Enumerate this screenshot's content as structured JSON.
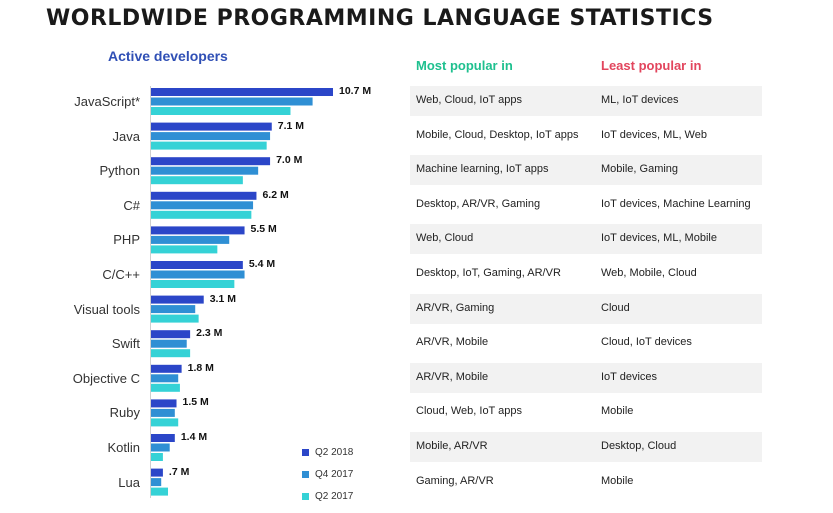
{
  "title": "WORLDWIDE PROGRAMMING LANGUAGE STATISTICS",
  "headers": {
    "active": "Active developers",
    "most": "Most popular in",
    "least": "Least popular in"
  },
  "colors": {
    "header_active": "#2f4fb5",
    "header_most": "#1fc08f",
    "header_least": "#e2455d",
    "series": [
      "#2b46c8",
      "#2f8fd4",
      "#35d2d6"
    ]
  },
  "rows": [
    {
      "lang": "JavaScript*",
      "most": "Web, Cloud, IoT apps",
      "least": "ML, IoT devices"
    },
    {
      "lang": "Java",
      "most": "Mobile, Cloud, Desktop, IoT apps",
      "least": "IoT devices, ML, Web"
    },
    {
      "lang": "Python",
      "most": "Machine learning, IoT apps",
      "least": "Mobile, Gaming"
    },
    {
      "lang": "C#",
      "most": "Desktop, AR/VR, Gaming",
      "least": "IoT devices, Machine Learning"
    },
    {
      "lang": "PHP",
      "most": "Web, Cloud",
      "least": "IoT devices, ML, Mobile"
    },
    {
      "lang": "C/C++",
      "most": "Desktop, IoT, Gaming, AR/VR",
      "least": "Web, Mobile, Cloud"
    },
    {
      "lang": "Visual tools",
      "most": "AR/VR, Gaming",
      "least": "Cloud"
    },
    {
      "lang": "Swift",
      "most": "AR/VR, Mobile",
      "least": "Cloud, IoT devices"
    },
    {
      "lang": "Objective C",
      "most": "AR/VR, Mobile",
      "least": "IoT devices"
    },
    {
      "lang": "Ruby",
      "most": "Cloud, Web, IoT apps",
      "least": "Mobile"
    },
    {
      "lang": "Kotlin",
      "most": "Mobile, AR/VR",
      "least": "Desktop, Cloud"
    },
    {
      "lang": "Lua",
      "most": "Gaming, AR/VR",
      "least": "Mobile"
    }
  ],
  "chart_data": {
    "type": "bar",
    "orientation": "horizontal",
    "title": "Active developers",
    "categories": [
      "JavaScript*",
      "Java",
      "Python",
      "C#",
      "PHP",
      "C/C++",
      "Visual tools",
      "Swift",
      "Objective C",
      "Ruby",
      "Kotlin",
      "Lua"
    ],
    "series": [
      {
        "name": "Q2 2018",
        "values": [
          10.7,
          7.1,
          7.0,
          6.2,
          5.5,
          5.4,
          3.1,
          2.3,
          1.8,
          1.5,
          1.4,
          0.7
        ]
      },
      {
        "name": "Q4 2017",
        "values": [
          9.5,
          7.0,
          6.3,
          6.0,
          4.6,
          5.5,
          2.6,
          2.1,
          1.6,
          1.4,
          1.1,
          0.6
        ]
      },
      {
        "name": "Q2 2017",
        "values": [
          8.2,
          6.8,
          5.4,
          5.9,
          3.9,
          4.9,
          2.8,
          2.3,
          1.7,
          1.6,
          0.7,
          1.0
        ]
      }
    ],
    "value_labels": [
      "10.7 M",
      "7.1 M",
      "7.0 M",
      "6.2 M",
      "5.5 M",
      "5.4 M",
      "3.1 M",
      "2.3 M",
      "1.8 M",
      "1.5 M",
      "1.4 M",
      ".7 M"
    ],
    "xlim": [
      0,
      12
    ],
    "legend_position": "bottom-right of bars"
  }
}
